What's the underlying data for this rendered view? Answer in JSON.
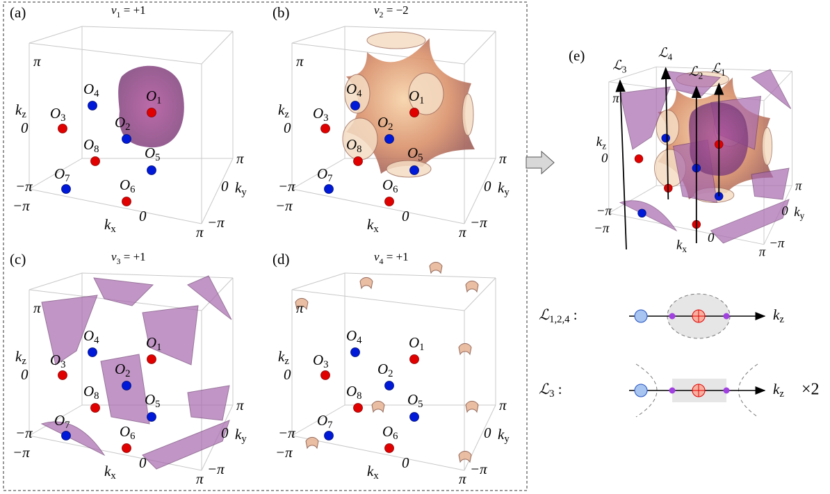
{
  "panels": [
    {
      "label": "(a)",
      "title": {
        "base": "ν",
        "sub": "1",
        "rest": " = +1"
      },
      "kz": {
        "base": "k",
        "sub": "z"
      },
      "kx": {
        "base": "k",
        "sub": "x"
      },
      "ky": {
        "base": "k",
        "sub": "y"
      },
      "zticks": [
        "π",
        "0",
        "−π"
      ],
      "xticks": [
        "−π",
        "0",
        "π"
      ],
      "yticks": [
        "π",
        "0",
        "−π"
      ],
      "points": [
        {
          "base": "O",
          "sub": "1"
        },
        {
          "base": "O",
          "sub": "2"
        },
        {
          "base": "O",
          "sub": "3"
        },
        {
          "base": "O",
          "sub": "4"
        },
        {
          "base": "O",
          "sub": "5"
        },
        {
          "base": "O",
          "sub": "6"
        },
        {
          "base": "O",
          "sub": "7"
        },
        {
          "base": "O",
          "sub": "8"
        }
      ]
    },
    {
      "label": "(b)",
      "title": {
        "base": "ν",
        "sub": "2",
        "rest": " = −2"
      },
      "kz": {
        "base": "k",
        "sub": "z"
      },
      "kx": {
        "base": "k",
        "sub": "x"
      },
      "ky": {
        "base": "k",
        "sub": "y"
      },
      "zticks": [
        "π",
        "0",
        "−π"
      ],
      "xticks": [
        "−π",
        "0",
        "π"
      ],
      "yticks": [
        "π",
        "0",
        "−π"
      ],
      "points": [
        {
          "base": "O",
          "sub": "1"
        },
        {
          "base": "O",
          "sub": "2"
        },
        {
          "base": "O",
          "sub": "3"
        },
        {
          "base": "O",
          "sub": "4"
        },
        {
          "base": "O",
          "sub": "5"
        },
        {
          "base": "O",
          "sub": "6"
        },
        {
          "base": "O",
          "sub": "7"
        },
        {
          "base": "O",
          "sub": "8"
        }
      ]
    },
    {
      "label": "(c)",
      "title": {
        "base": "ν",
        "sub": "3",
        "rest": " = +1"
      },
      "kz": {
        "base": "k",
        "sub": "z"
      },
      "kx": {
        "base": "k",
        "sub": "x"
      },
      "ky": {
        "base": "k",
        "sub": "y"
      },
      "zticks": [
        "π",
        "0",
        "−π"
      ],
      "xticks": [
        "−π",
        "0",
        "π"
      ],
      "yticks": [
        "π",
        "0",
        "−π"
      ],
      "points": [
        {
          "base": "O",
          "sub": "1"
        },
        {
          "base": "O",
          "sub": "2"
        },
        {
          "base": "O",
          "sub": "3"
        },
        {
          "base": "O",
          "sub": "4"
        },
        {
          "base": "O",
          "sub": "5"
        },
        {
          "base": "O",
          "sub": "6"
        },
        {
          "base": "O",
          "sub": "7"
        },
        {
          "base": "O",
          "sub": "8"
        }
      ]
    },
    {
      "label": "(d)",
      "title": {
        "base": "ν",
        "sub": "4",
        "rest": " = +1"
      },
      "kz": {
        "base": "k",
        "sub": "z"
      },
      "kx": {
        "base": "k",
        "sub": "x"
      },
      "ky": {
        "base": "k",
        "sub": "y"
      },
      "zticks": [
        "π",
        "0",
        "−π"
      ],
      "xticks": [
        "−π",
        "0",
        "π"
      ],
      "yticks": [
        "π",
        "0",
        "−π"
      ],
      "points": [
        {
          "base": "O",
          "sub": "1"
        },
        {
          "base": "O",
          "sub": "2"
        },
        {
          "base": "O",
          "sub": "3"
        },
        {
          "base": "O",
          "sub": "4"
        },
        {
          "base": "O",
          "sub": "5"
        },
        {
          "base": "O",
          "sub": "6"
        },
        {
          "base": "O",
          "sub": "7"
        },
        {
          "base": "O",
          "sub": "8"
        }
      ]
    }
  ],
  "panel_e": {
    "label": "(e)",
    "kz": {
      "base": "k",
      "sub": "z"
    },
    "kx": {
      "base": "k",
      "sub": "x"
    },
    "ky": {
      "base": "k",
      "sub": "y"
    },
    "zticks": [
      "π",
      "0",
      "−π"
    ],
    "xticks": [
      "−π",
      "0",
      "π"
    ],
    "yticks": [
      "π",
      "0",
      "−π"
    ],
    "lines": [
      {
        "base": "ℒ",
        "sub": "3"
      },
      {
        "base": "ℒ",
        "sub": "4"
      },
      {
        "base": "ℒ",
        "sub": "2"
      },
      {
        "base": "ℒ",
        "sub": "1"
      }
    ]
  },
  "legend": [
    {
      "name": {
        "base": "ℒ",
        "sub": "1,2,4",
        "rest": " :"
      },
      "axis": {
        "base": "k",
        "sub": "z"
      }
    },
    {
      "name": {
        "base": "ℒ",
        "sub": "3",
        "rest": " :"
      },
      "axis": {
        "base": "k",
        "sub": "z"
      },
      "multiplier": "×2"
    }
  ]
}
